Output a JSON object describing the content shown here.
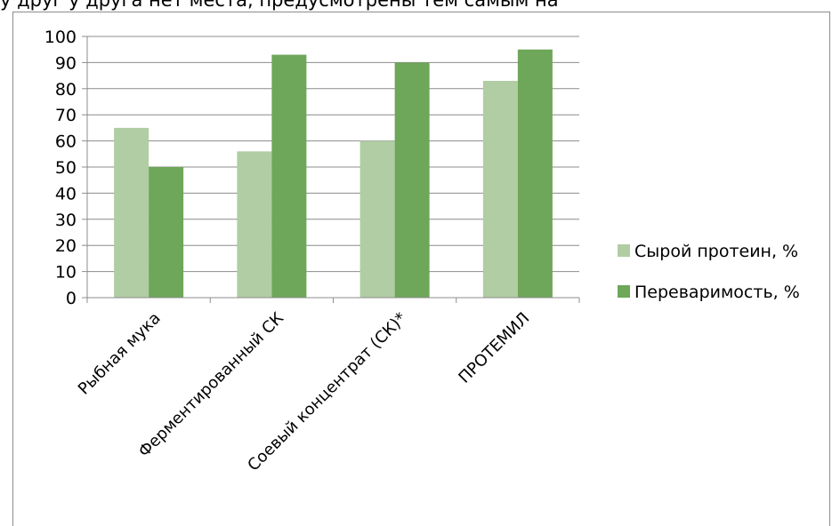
{
  "page": {
    "top_text": "у друг у друга нет места, предусмотрены тем самым на"
  },
  "chart_data": {
    "type": "bar",
    "categories": [
      "Рыбная мука",
      "Ферментированный СК",
      "Соевый концентрат (СК)*",
      "ПРОТЕМИЛ"
    ],
    "series": [
      {
        "name": "Сырой протеин, %",
        "values": [
          65,
          56,
          60,
          83
        ],
        "color": "#b0cda3"
      },
      {
        "name": "Переваримость, %",
        "values": [
          50,
          93,
          90,
          95
        ],
        "color": "#6ea65a"
      }
    ],
    "ylim": [
      0,
      100
    ],
    "yticks": [
      0,
      10,
      20,
      30,
      40,
      50,
      60,
      70,
      80,
      90,
      100
    ],
    "grid": true,
    "legend_position": "right",
    "title": "",
    "xlabel": "",
    "ylabel": ""
  }
}
